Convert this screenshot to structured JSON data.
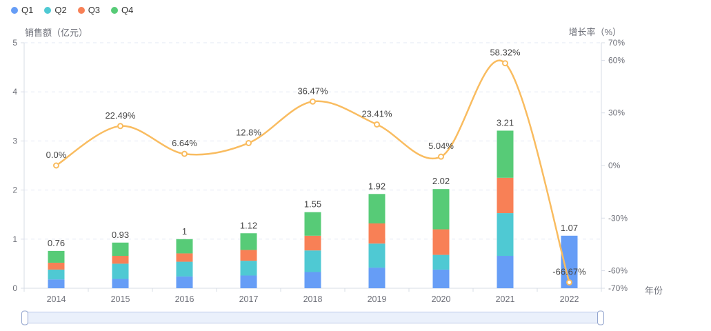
{
  "legend": {
    "items": [
      {
        "label": "Q1",
        "color": "#669df6"
      },
      {
        "label": "Q2",
        "color": "#4fc9d3"
      },
      {
        "label": "Q3",
        "color": "#f88056"
      },
      {
        "label": "Q4",
        "color": "#57cb77"
      }
    ]
  },
  "chart_data": {
    "type": "bar",
    "subtype": "stacked-bar-with-line",
    "categories": [
      "2014",
      "2015",
      "2016",
      "2017",
      "2018",
      "2019",
      "2020",
      "2021",
      "2022"
    ],
    "series": [
      {
        "name": "Q1",
        "type": "bar",
        "stack": "sales",
        "color": "#669df6",
        "values": [
          0.18,
          0.19,
          0.24,
          0.26,
          0.33,
          0.42,
          0.38,
          0.66,
          1.07
        ]
      },
      {
        "name": "Q2",
        "type": "bar",
        "stack": "sales",
        "color": "#4fc9d3",
        "values": [
          0.2,
          0.31,
          0.3,
          0.3,
          0.44,
          0.49,
          0.3,
          0.87,
          0
        ]
      },
      {
        "name": "Q3",
        "type": "bar",
        "stack": "sales",
        "color": "#f88056",
        "values": [
          0.14,
          0.16,
          0.17,
          0.22,
          0.3,
          0.41,
          0.52,
          0.72,
          0
        ]
      },
      {
        "name": "Q4",
        "type": "bar",
        "stack": "sales",
        "color": "#57cb77",
        "values": [
          0.24,
          0.27,
          0.29,
          0.34,
          0.48,
          0.6,
          0.82,
          0.96,
          0
        ]
      },
      {
        "name": "增长率",
        "type": "line",
        "smooth": true,
        "color": "#f9bc60",
        "values": [
          0.0,
          22.49,
          6.64,
          12.8,
          36.47,
          23.41,
          5.04,
          58.32,
          -66.67
        ],
        "labels": [
          "0.0%",
          "22.49%",
          "6.64%",
          "12.8%",
          "36.47%",
          "23.41%",
          "5.04%",
          "58.32%",
          "-66.67%"
        ]
      }
    ],
    "totals": {
      "values": [
        0.76,
        0.93,
        1.0,
        1.12,
        1.55,
        1.92,
        2.02,
        3.21,
        1.07
      ],
      "labels": [
        "0.76",
        "0.93",
        "1",
        "1.12",
        "1.55",
        "1.92",
        "2.02",
        "3.21",
        "1.07"
      ]
    },
    "y_left": {
      "title": "销售额（亿元）",
      "min": 0,
      "max": 5,
      "tick_values": [
        5,
        4,
        3,
        2,
        1,
        0
      ],
      "tick_labels": [
        "5",
        "4",
        "3",
        "2",
        "1",
        "0"
      ]
    },
    "y_right": {
      "title": "增长率（%）",
      "min": -70,
      "max": 70,
      "tick_values": [
        70,
        60,
        30,
        0,
        -30,
        -60,
        -70
      ],
      "tick_labels": [
        "70%",
        "60%",
        "30%",
        "0%",
        "-30%",
        "-60%",
        "-70%"
      ]
    },
    "x_axis": {
      "title": "年份"
    },
    "layout": {
      "grid_dashed": true,
      "legend_position": "top-left",
      "datazoom": true
    }
  }
}
